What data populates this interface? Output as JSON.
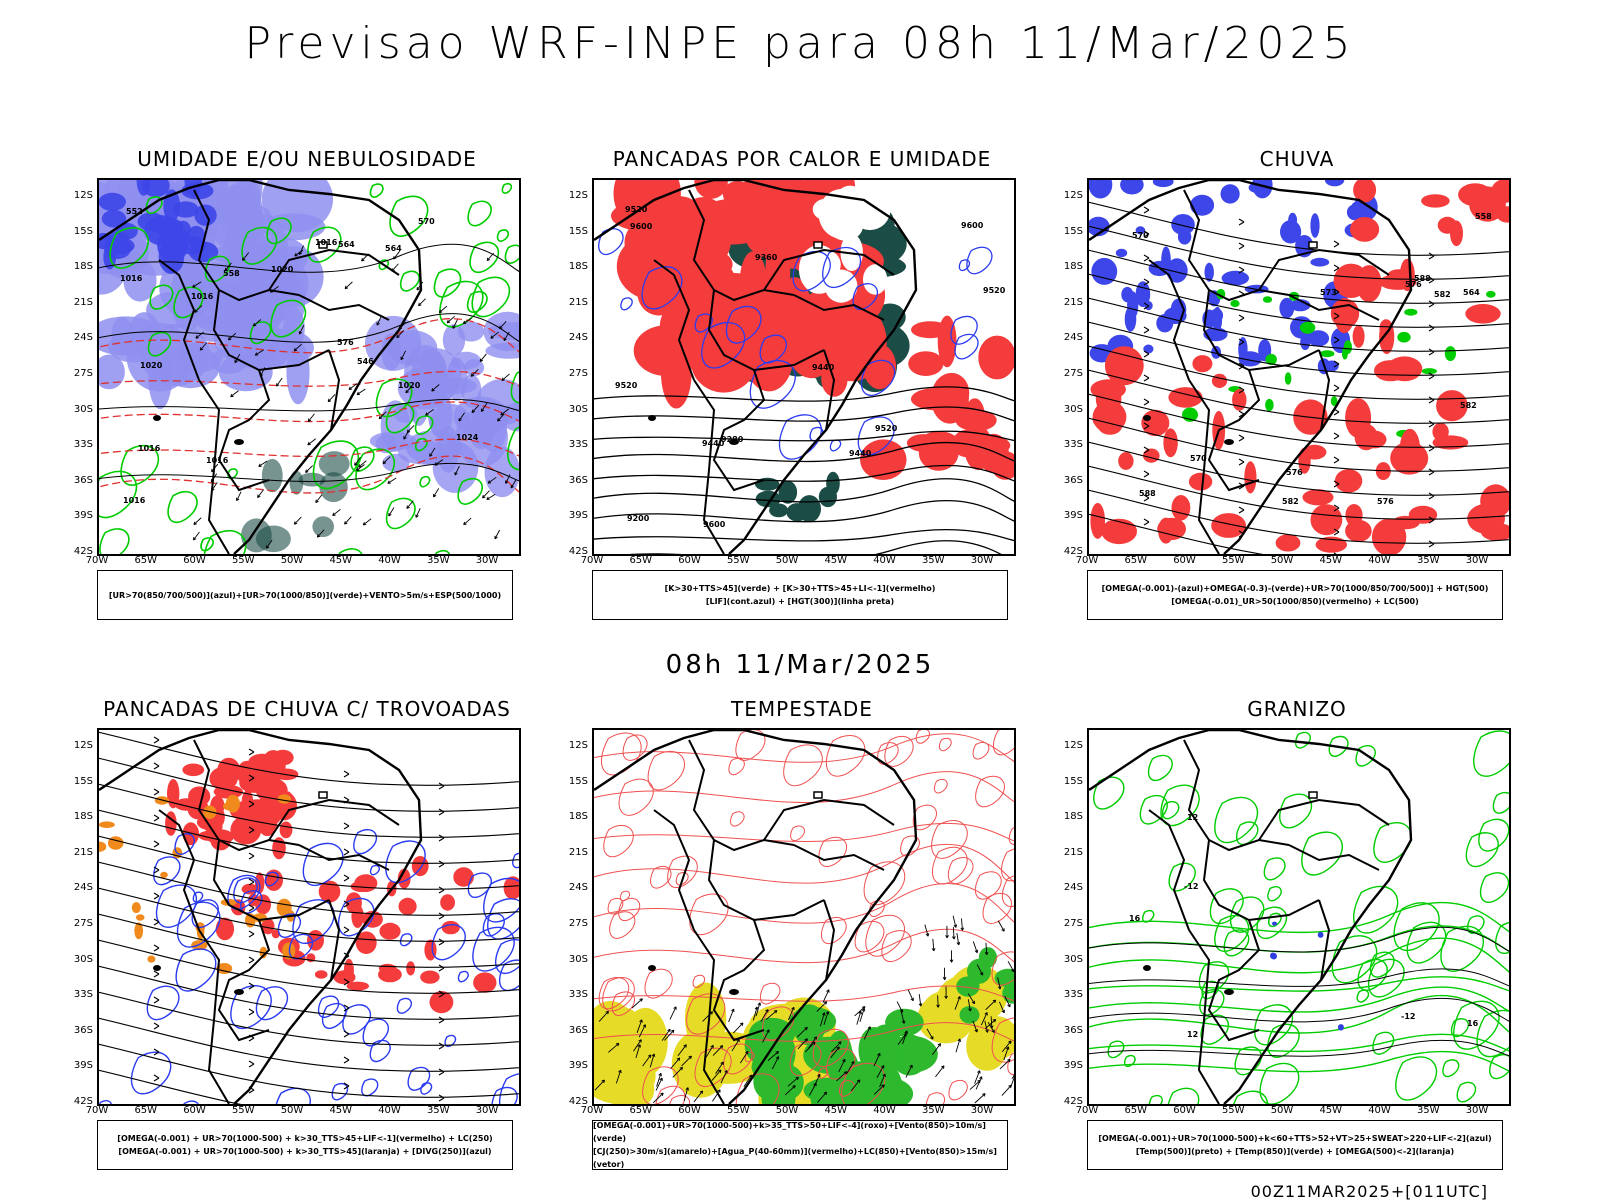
{
  "header": {
    "title": "Previsao WRF-INPE  para 08h 11/Mar/2025",
    "mid_title": "08h 11/Mar/2025",
    "footer": "00Z11MAR2025+[011UTC]"
  },
  "axes": {
    "lat_labels": [
      "12S",
      "15S",
      "18S",
      "21S",
      "24S",
      "27S",
      "30S",
      "33S",
      "36S",
      "39S",
      "42S"
    ],
    "lon_labels": [
      "70W",
      "65W",
      "60W",
      "55W",
      "50W",
      "45W",
      "40W",
      "35W",
      "30W"
    ]
  },
  "panels": [
    {
      "title": "UMIDADE E/OU NEBULOSIDADE",
      "legend": [
        "[UR>70(850/700/500)](azul)+[UR>70(1000/850)](verde)+VENTO>5m/s+ESP(500/1000)"
      ],
      "contour_labels": [
        "1016",
        "1016",
        "1020",
        "1020",
        "1016",
        "1016",
        "570",
        "576",
        "564",
        "1016",
        "1020",
        "1016",
        "1024",
        "552",
        "546",
        "558",
        "564"
      ]
    },
    {
      "title": "PANCADAS POR CALOR E UMIDADE",
      "legend": [
        "[K>30+TTS>45](verde) + [K>30+TTS>45+LI<-1](vermelho)",
        "[LIF](cont.azul) + [HGT(300)](linha preta)"
      ],
      "contour_labels": [
        "9600",
        "9520",
        "9520",
        "9600",
        "9520",
        "9440",
        "9360",
        "9280",
        "9200",
        "9520",
        "9440",
        "9440",
        "9600"
      ]
    },
    {
      "title": "CHUVA",
      "legend": [
        "[OMEGA(-0.001)-(azul)+OMEGA(-0.3)-(verde)+UR>70(1000/850/700/500)] + HGT(500)",
        "[OMEGA(-0.01)_UR>50(1000/850)(vermelho) + LC(500)"
      ],
      "contour_labels": [
        "588",
        "588",
        "582",
        "582",
        "576",
        "570",
        "564",
        "558",
        "576",
        "582",
        "576",
        "570",
        "573"
      ]
    },
    {
      "title": "PANCADAS DE CHUVA C/ TROVOADAS",
      "legend": [
        "[OMEGA(-0.001) + UR>70(1000-500) + k>30_TTS>45+LIF<-1](vermelho) + LC(250)",
        "[OMEGA(-0.001) + UR>70(1000-500) + k>30_TTS>45](laranja) + [DIVG(250)](azul)"
      ],
      "contour_labels": []
    },
    {
      "title": "TEMPESTADE",
      "legend": [
        "[OMEGA(-0.001)+UR>70(1000-500)+k>35_TTS>50+LIF<-4](roxo)+[Vento(850)>10m/s](verde)",
        "[CJ(250)>30m/s](amarelo)+[Agua_P(40-60mm)](vermelho)+LC(850)+[Vento(850)>15m/s](vetor)"
      ],
      "contour_labels": []
    },
    {
      "title": "GRANIZO",
      "legend": [
        "[OMEGA(-0.001)+UR>70(1000-500)+k<60+TTS>52+VT>25+SWEAT>220+LIF<-2](azul)",
        "[Temp(500)](preto) + [Temp(850)](verde) + [OMEGA(500)<-2](laranja)"
      ],
      "contour_labels": [
        "-12",
        "12",
        "-12",
        "16",
        "12",
        "16"
      ]
    }
  ],
  "colors": {
    "blue_fill": "#8f8ff0",
    "blue_dark": "#3d46e8",
    "green": "#00cc00",
    "red": "#f43c3c",
    "dark_teal": "#1c4c46",
    "orange": "#f08a1c",
    "yellow": "#e6dc28",
    "contour_red": "#f05050"
  }
}
